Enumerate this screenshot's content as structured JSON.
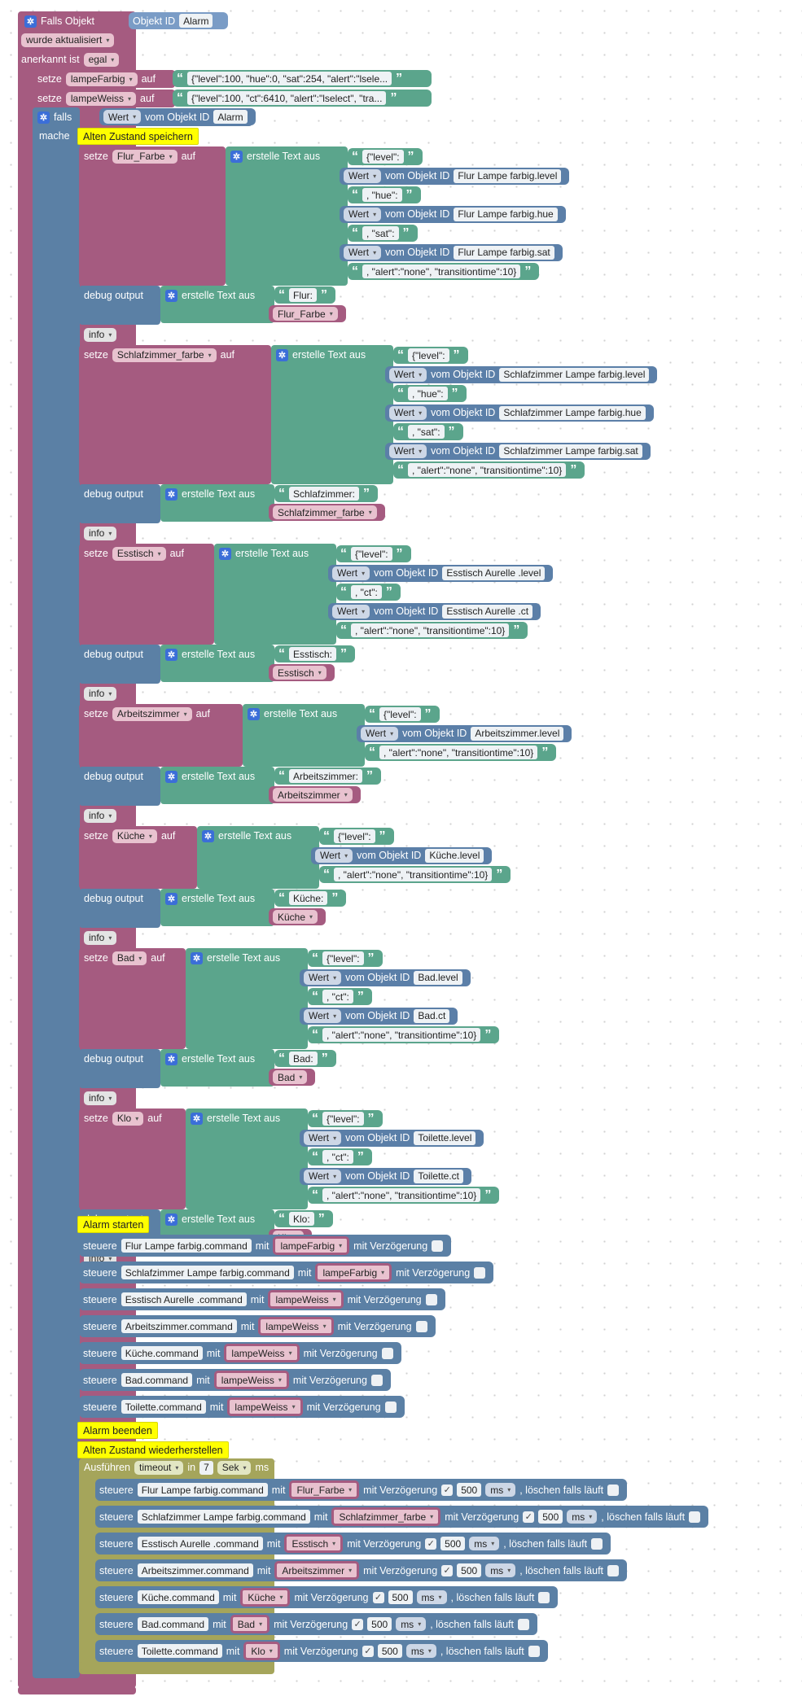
{
  "colors": {
    "trigger": "#a55b80",
    "var": "#a55b80",
    "logic": "#5b80a5",
    "text": "#5ba58c",
    "objval": "#5b7fa8",
    "comment": "#ffff00",
    "timeout": "#a5a55b"
  },
  "icons": [
    "gear-icon",
    "chevron-down-icon",
    "checkbox-icon",
    "quote-open-icon",
    "quote-close-icon"
  ],
  "trigger": {
    "title": "Falls Objekt",
    "obj_label": "Objekt ID",
    "obj_value": "Alarm",
    "updated": "wurde aktualisiert",
    "ack_label": "anerkannt ist",
    "ack_value": "egal"
  },
  "labels": {
    "setze": "setze",
    "auf": "auf",
    "falls": "falls",
    "mache": "mache",
    "wert": "Wert",
    "vom_objekt_id": "vom Objekt ID",
    "erstelle_text_aus": "erstelle Text aus",
    "debug_output": "debug output",
    "info": "info",
    "steuere": "steuere",
    "mit": "mit",
    "mit_verzoegerung": "mit Verzögerung",
    "ms": "ms",
    "loeschen": ", löschen falls läuft",
    "ausfuehren": "Ausführen",
    "timeout": "timeout",
    "in": "in",
    "sek": "Sek",
    "ms_label": "ms",
    "check": "✓"
  },
  "vars_top": [
    {
      "name": "lampeFarbig",
      "value": "{\"level\":100, \"hue\":0, \"sat\":254, \"alert\":\"lsele..."
    },
    {
      "name": "lampeWeiss",
      "value": "{\"level\":100, \"ct\":6410, \"alert\":\"lselect\", \"tra..."
    }
  ],
  "if_obj": "Alarm",
  "comments": {
    "save": "Alten Zustand speichern",
    "start": "Alarm starten",
    "end": "Alarm beenden",
    "restore": "Alten Zustand wiederherstellen"
  },
  "groups": [
    {
      "var": "Flur_Farbe",
      "parts": [
        {
          "t": "{\"level\":"
        },
        {
          "o": "Flur Lampe farbig.level"
        },
        {
          "t": ", \"hue\":"
        },
        {
          "o": "Flur Lampe farbig.hue"
        },
        {
          "t": ", \"sat\":"
        },
        {
          "o": "Flur Lampe farbig.sat"
        },
        {
          "t": ", \"alert\":\"none\", \"transitiontime\":10}"
        }
      ],
      "debug_text": "Flur:"
    },
    {
      "var": "Schlafzimmer_farbe",
      "parts": [
        {
          "t": "{\"level\":"
        },
        {
          "o": "Schlafzimmer Lampe farbig.level"
        },
        {
          "t": ", \"hue\":"
        },
        {
          "o": "Schlafzimmer Lampe farbig.hue"
        },
        {
          "t": ", \"sat\":"
        },
        {
          "o": "Schlafzimmer Lampe farbig.sat"
        },
        {
          "t": ", \"alert\":\"none\", \"transitiontime\":10}"
        }
      ],
      "debug_text": "Schlafzimmer:"
    },
    {
      "var": "Esstisch",
      "parts": [
        {
          "t": "{\"level\":"
        },
        {
          "o": "Esstisch Aurelle .level"
        },
        {
          "t": ", \"ct\":"
        },
        {
          "o": "Esstisch Aurelle .ct"
        },
        {
          "t": ", \"alert\":\"none\", \"transitiontime\":10}"
        }
      ],
      "debug_text": "Esstisch:"
    },
    {
      "var": "Arbeitszimmer",
      "parts": [
        {
          "t": "{\"level\":"
        },
        {
          "o": "Arbeitszimmer.level"
        },
        {
          "t": ", \"alert\":\"none\", \"transitiontime\":10}"
        }
      ],
      "debug_text": "Arbeitszimmer:"
    },
    {
      "var": "Küche",
      "parts": [
        {
          "t": "{\"level\":"
        },
        {
          "o": "Küche.level"
        },
        {
          "t": ", \"alert\":\"none\", \"transitiontime\":10}"
        }
      ],
      "debug_text": "Küche:"
    },
    {
      "var": "Bad",
      "parts": [
        {
          "t": "{\"level\":"
        },
        {
          "o": "Bad.level"
        },
        {
          "t": ", \"ct\":"
        },
        {
          "o": "Bad.ct"
        },
        {
          "t": ", \"alert\":\"none\", \"transitiontime\":10}"
        }
      ],
      "debug_text": "Bad:"
    },
    {
      "var": "Klo",
      "parts": [
        {
          "t": "{\"level\":"
        },
        {
          "o": "Toilette.level"
        },
        {
          "t": ", \"ct\":"
        },
        {
          "o": "Toilette.ct"
        },
        {
          "t": ", \"alert\":\"none\", \"transitiontime\":10}"
        }
      ],
      "debug_text": "Klo:"
    }
  ],
  "start_controls": [
    {
      "target": "Flur Lampe farbig.command",
      "var": "lampeFarbig"
    },
    {
      "target": "Schlafzimmer Lampe farbig.command",
      "var": "lampeFarbig"
    },
    {
      "target": "Esstisch Aurelle .command",
      "var": "lampeWeiss"
    },
    {
      "target": "Arbeitszimmer.command",
      "var": "lampeWeiss"
    },
    {
      "target": "Küche.command",
      "var": "lampeWeiss"
    },
    {
      "target": "Bad.command",
      "var": "lampeWeiss"
    },
    {
      "target": "Toilette.command",
      "var": "lampeWeiss"
    }
  ],
  "timeout": {
    "seconds": "7"
  },
  "restore_controls": [
    {
      "target": "Flur Lampe farbig.command",
      "var": "Flur_Farbe",
      "delay": "500"
    },
    {
      "target": "Schlafzimmer Lampe farbig.command",
      "var": "Schlafzimmer_farbe",
      "delay": "500"
    },
    {
      "target": "Esstisch Aurelle .command",
      "var": "Esstisch",
      "delay": "500"
    },
    {
      "target": "Arbeitszimmer.command",
      "var": "Arbeitszimmer",
      "delay": "500"
    },
    {
      "target": "Küche.command",
      "var": "Küche",
      "delay": "500"
    },
    {
      "target": "Bad.command",
      "var": "Bad",
      "delay": "500"
    },
    {
      "target": "Toilette.command",
      "var": "Klo",
      "delay": "500"
    }
  ]
}
